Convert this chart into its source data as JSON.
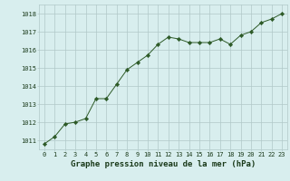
{
  "x": [
    0,
    1,
    2,
    3,
    4,
    5,
    6,
    7,
    8,
    9,
    10,
    11,
    12,
    13,
    14,
    15,
    16,
    17,
    18,
    19,
    20,
    21,
    22,
    23
  ],
  "y": [
    1010.8,
    1011.2,
    1011.9,
    1012.0,
    1012.2,
    1013.3,
    1013.3,
    1014.1,
    1014.9,
    1015.3,
    1015.7,
    1016.3,
    1016.7,
    1016.6,
    1016.4,
    1016.4,
    1016.4,
    1016.6,
    1016.3,
    1016.8,
    1017.0,
    1017.5,
    1017.7,
    1018.0
  ],
  "line_color": "#2d5a27",
  "marker": "D",
  "marker_size": 2.2,
  "bg_color": "#d8eeee",
  "grid_color": "#b0c8c8",
  "title": "Graphe pression niveau de la mer (hPa)",
  "title_color": "#1a3a1a",
  "ylim_min": 1010.5,
  "ylim_max": 1018.5,
  "xlim_min": -0.5,
  "xlim_max": 23.5,
  "yticks": [
    1011,
    1012,
    1013,
    1014,
    1015,
    1016,
    1017,
    1018
  ],
  "xticks": [
    0,
    1,
    2,
    3,
    4,
    5,
    6,
    7,
    8,
    9,
    10,
    11,
    12,
    13,
    14,
    15,
    16,
    17,
    18,
    19,
    20,
    21,
    22,
    23
  ],
  "tick_color": "#1a3a1a",
  "tick_fontsize": 5.0,
  "title_fontsize": 6.5,
  "title_bold": true,
  "linewidth": 0.7
}
